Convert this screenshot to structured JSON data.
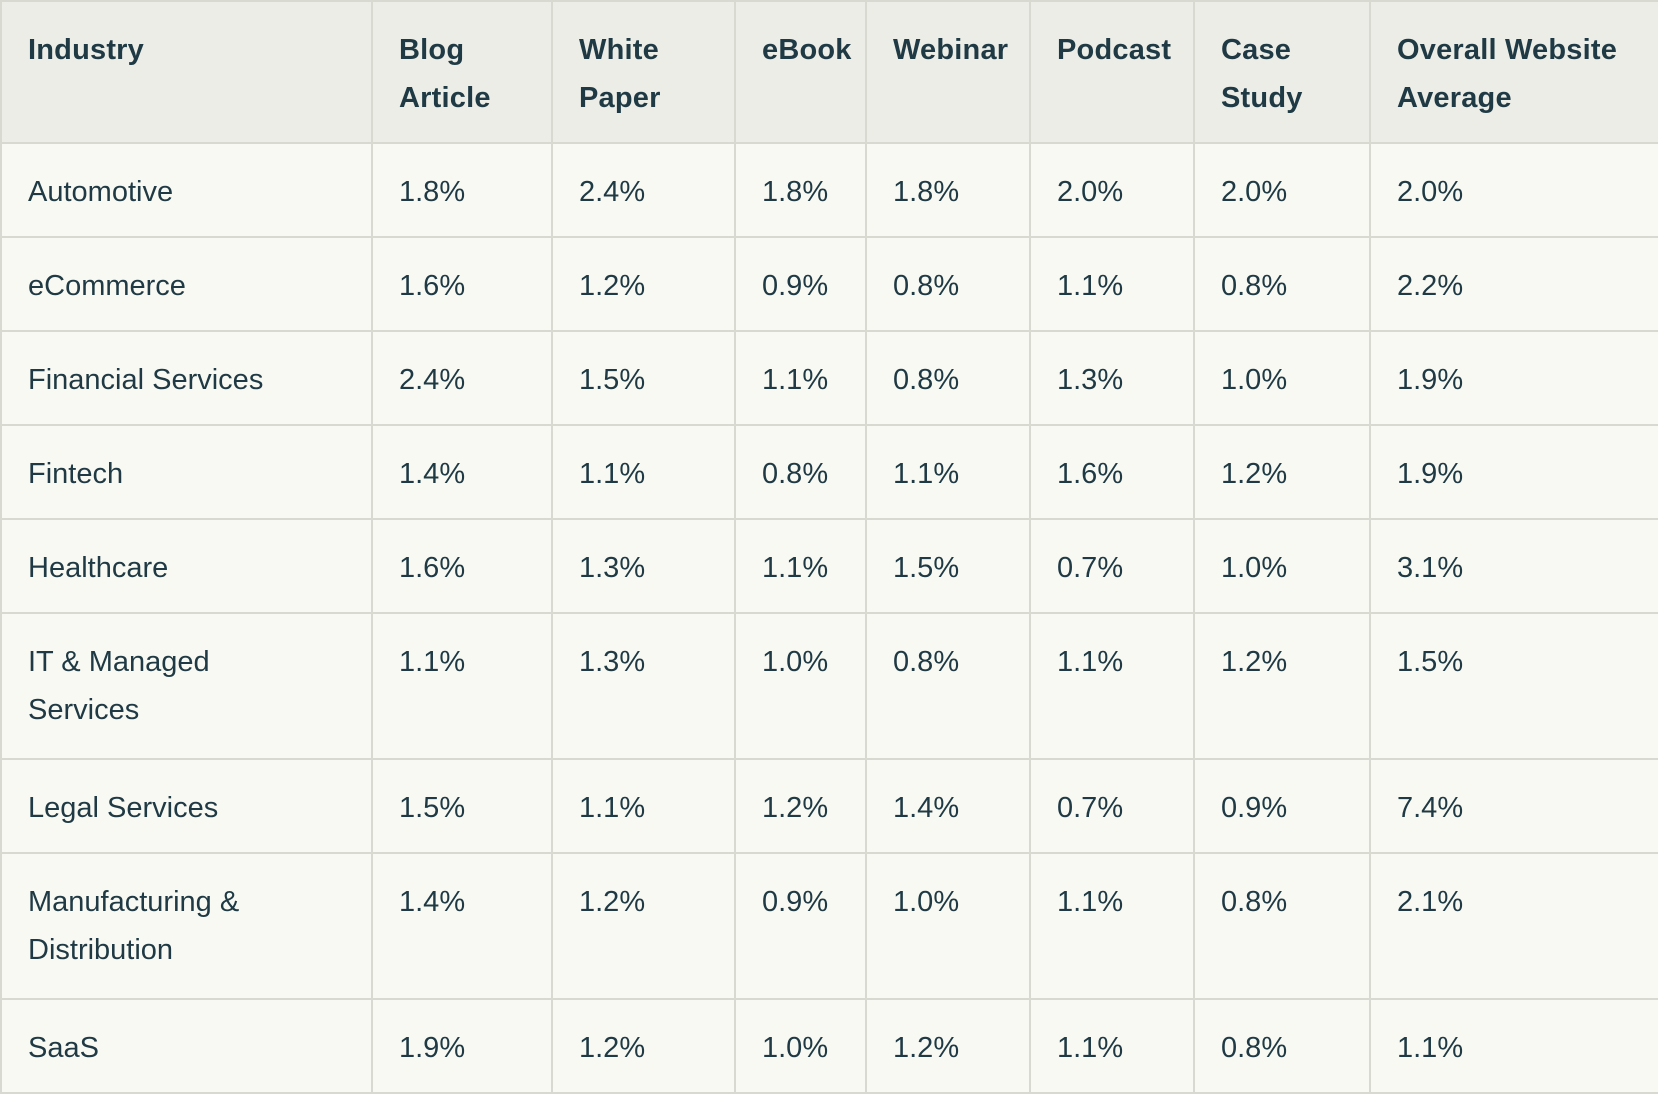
{
  "colors": {
    "header_bg": "#ecede7",
    "row_bg": "#f9f9f3",
    "border": "#d8dad1",
    "text": "#1f3a44"
  },
  "table": {
    "columns": [
      "Industry",
      "Blog\nArticle",
      "White\nPaper",
      "eBook",
      "Webinar",
      "Podcast",
      "Case\nStudy",
      "Overall Website\nAverage"
    ],
    "rows": [
      {
        "industry": "Automotive",
        "values": [
          "1.8%",
          "2.4%",
          "1.8%",
          "1.8%",
          "2.0%",
          "2.0%",
          "2.0%"
        ]
      },
      {
        "industry": "eCommerce",
        "values": [
          "1.6%",
          "1.2%",
          "0.9%",
          "0.8%",
          "1.1%",
          "0.8%",
          "2.2%"
        ]
      },
      {
        "industry": "Financial Services",
        "values": [
          "2.4%",
          "1.5%",
          "1.1%",
          "0.8%",
          "1.3%",
          "1.0%",
          "1.9%"
        ]
      },
      {
        "industry": "Fintech",
        "values": [
          "1.4%",
          "1.1%",
          "0.8%",
          "1.1%",
          "1.6%",
          "1.2%",
          "1.9%"
        ]
      },
      {
        "industry": "Healthcare",
        "values": [
          "1.6%",
          "1.3%",
          "1.1%",
          "1.5%",
          "0.7%",
          "1.0%",
          "3.1%"
        ]
      },
      {
        "industry": "IT & Managed\nServices",
        "values": [
          "1.1%",
          "1.3%",
          "1.0%",
          "0.8%",
          "1.1%",
          "1.2%",
          "1.5%"
        ]
      },
      {
        "industry": "Legal Services",
        "values": [
          "1.5%",
          "1.1%",
          "1.2%",
          "1.4%",
          "0.7%",
          "0.9%",
          "7.4%"
        ]
      },
      {
        "industry": "Manufacturing &\nDistribution",
        "values": [
          "1.4%",
          "1.2%",
          "0.9%",
          "1.0%",
          "1.1%",
          "0.8%",
          "2.1%"
        ]
      },
      {
        "industry": "SaaS",
        "values": [
          "1.9%",
          "1.2%",
          "1.0%",
          "1.2%",
          "1.1%",
          "0.8%",
          "1.1%"
        ]
      }
    ]
  },
  "chart_data": {
    "type": "table",
    "unit": "%",
    "columns": [
      "Industry",
      "Blog Article",
      "White Paper",
      "eBook",
      "Webinar",
      "Podcast",
      "Case Study",
      "Overall Website Average"
    ],
    "rows": [
      [
        "Automotive",
        1.8,
        2.4,
        1.8,
        1.8,
        2.0,
        2.0,
        2.0
      ],
      [
        "eCommerce",
        1.6,
        1.2,
        0.9,
        0.8,
        1.1,
        0.8,
        2.2
      ],
      [
        "Financial Services",
        2.4,
        1.5,
        1.1,
        0.8,
        1.3,
        1.0,
        1.9
      ],
      [
        "Fintech",
        1.4,
        1.1,
        0.8,
        1.1,
        1.6,
        1.2,
        1.9
      ],
      [
        "Healthcare",
        1.6,
        1.3,
        1.1,
        1.5,
        0.7,
        1.0,
        3.1
      ],
      [
        "IT & Managed Services",
        1.1,
        1.3,
        1.0,
        0.8,
        1.1,
        1.2,
        1.5
      ],
      [
        "Legal Services",
        1.5,
        1.1,
        1.2,
        1.4,
        0.7,
        0.9,
        7.4
      ],
      [
        "Manufacturing & Distribution",
        1.4,
        1.2,
        0.9,
        1.0,
        1.1,
        0.8,
        2.1
      ],
      [
        "SaaS",
        1.9,
        1.2,
        1.0,
        1.2,
        1.1,
        0.8,
        1.1
      ]
    ]
  }
}
